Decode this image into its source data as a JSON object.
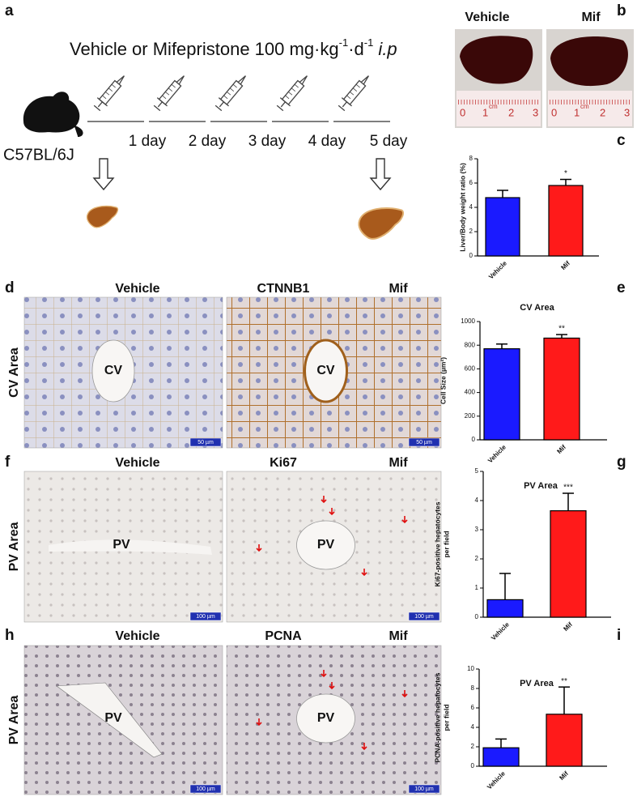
{
  "labels": [
    "a",
    "b",
    "c",
    "d",
    "e",
    "f",
    "g",
    "h",
    "i"
  ],
  "schematic": {
    "title_parts": [
      "Vehicle or Mifepristone 100 mg·kg",
      "-1",
      "·d",
      "-1",
      " i.p"
    ],
    "days": [
      "1 day",
      "2 day",
      "3 day",
      "4 day",
      "5 day"
    ],
    "strain": "C57BL/6J"
  },
  "photos": {
    "columns": [
      "Vehicle",
      "Mif"
    ],
    "ruler": [
      "0",
      "1",
      "cm",
      "2",
      "3"
    ]
  },
  "micrographs": [
    {
      "columns": [
        "Vehicle",
        "Mif"
      ],
      "stain": "CTNNB1",
      "row_label": "CV Area",
      "vessel": "CV",
      "scale": "50 µm"
    },
    {
      "columns": [
        "Vehicle",
        "Mif"
      ],
      "stain": "Ki67",
      "row_label": "PV Area",
      "vessel": "PV",
      "scale": "100 µm"
    },
    {
      "columns": [
        "Vehicle",
        "Mif"
      ],
      "stain": "PCNA",
      "row_label": "PV Area",
      "vessel": "PV",
      "scale": "100 µm"
    }
  ],
  "chart_data": [
    {
      "type": "bar",
      "ylabel": [
        "Liver/Body weight ratio (%)"
      ],
      "categories": [
        "Vehicle",
        "Mif"
      ],
      "values": [
        4.8,
        5.8
      ],
      "errors": [
        0.6,
        0.5
      ],
      "annotations": [
        null,
        "*"
      ],
      "colors": [
        "#1a1aff",
        "#ff1a1a"
      ],
      "ylim": [
        0,
        8
      ],
      "yticks": [
        0,
        2,
        4,
        6,
        8
      ]
    },
    {
      "type": "bar",
      "title": "CV Area",
      "ylabel": [
        "Cell Size (µm²)"
      ],
      "categories": [
        "Vehicle",
        "Mif"
      ],
      "values": [
        770,
        860
      ],
      "errors": [
        40,
        30
      ],
      "annotations": [
        null,
        "**"
      ],
      "colors": [
        "#1a1aff",
        "#ff1a1a"
      ],
      "ylim": [
        0,
        1000
      ],
      "yticks": [
        0,
        200,
        400,
        600,
        800,
        1000
      ]
    },
    {
      "type": "bar",
      "title": "PV Area",
      "ylabel": [
        "Ki67-positive hepatocytes",
        "per field"
      ],
      "categories": [
        "Vehicle",
        "Mif"
      ],
      "values": [
        0.6,
        3.65
      ],
      "errors": [
        0.9,
        0.6
      ],
      "annotations": [
        null,
        "***"
      ],
      "colors": [
        "#1a1aff",
        "#ff1a1a"
      ],
      "ylim": [
        0,
        5
      ],
      "yticks": [
        0,
        1,
        2,
        3,
        4,
        5
      ]
    },
    {
      "type": "bar",
      "title": "PV Area",
      "ylabel": [
        "PCNA-positive hepatocytes",
        "per field"
      ],
      "categories": [
        "Vehicle",
        "Mif"
      ],
      "values": [
        1.9,
        5.35
      ],
      "errors": [
        0.9,
        2.8
      ],
      "annotations": [
        null,
        "**"
      ],
      "colors": [
        "#1a1aff",
        "#ff1a1a"
      ],
      "ylim": [
        0,
        10
      ],
      "yticks": [
        0,
        2,
        4,
        6,
        8,
        10
      ]
    }
  ]
}
